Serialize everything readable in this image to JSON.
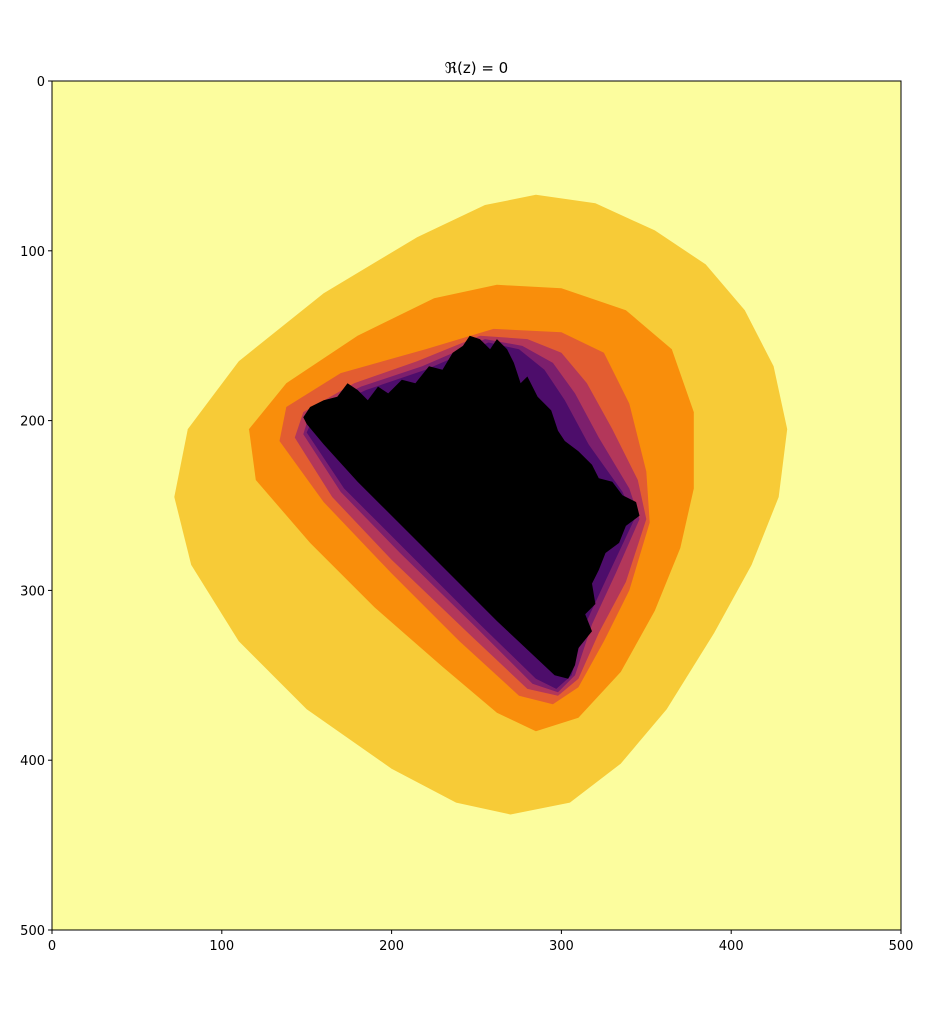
{
  "chart_data": {
    "type": "heatmap",
    "title": "ℜ(z) = 0",
    "xlabel": "",
    "ylabel": "",
    "xlim": [
      0,
      500
    ],
    "ylim": [
      500,
      0
    ],
    "xticks": [
      0,
      100,
      200,
      300,
      400,
      500
    ],
    "yticks": [
      0,
      100,
      200,
      300,
      400,
      500
    ],
    "grid": false,
    "legend": "none",
    "colormap": "inferno",
    "colors": {
      "background": "#fcfd9e",
      "level_1": "#f7cb37",
      "level_2": "#f98e0b",
      "level_3": "#e35d31",
      "level_4": "#b3375a",
      "level_5": "#7c1f6d",
      "level_6": "#4d0d6b",
      "interior": "#000000"
    },
    "contours": [
      {
        "level": "level_1",
        "points": [
          [
            285,
            67
          ],
          [
            320,
            72
          ],
          [
            355,
            88
          ],
          [
            385,
            108
          ],
          [
            408,
            135
          ],
          [
            425,
            168
          ],
          [
            433,
            205
          ],
          [
            428,
            245
          ],
          [
            412,
            285
          ],
          [
            390,
            325
          ],
          [
            362,
            370
          ],
          [
            335,
            402
          ],
          [
            305,
            425
          ],
          [
            270,
            432
          ],
          [
            238,
            425
          ],
          [
            200,
            405
          ],
          [
            150,
            370
          ],
          [
            110,
            330
          ],
          [
            82,
            285
          ],
          [
            72,
            245
          ],
          [
            80,
            205
          ],
          [
            110,
            165
          ],
          [
            160,
            125
          ],
          [
            215,
            92
          ],
          [
            255,
            73
          ]
        ]
      },
      {
        "level": "level_2",
        "points": [
          [
            262,
            120
          ],
          [
            300,
            122
          ],
          [
            338,
            135
          ],
          [
            365,
            158
          ],
          [
            378,
            195
          ],
          [
            378,
            240
          ],
          [
            370,
            275
          ],
          [
            355,
            312
          ],
          [
            335,
            348
          ],
          [
            310,
            375
          ],
          [
            285,
            383
          ],
          [
            262,
            372
          ],
          [
            230,
            345
          ],
          [
            190,
            310
          ],
          [
            152,
            272
          ],
          [
            120,
            235
          ],
          [
            116,
            205
          ],
          [
            138,
            178
          ],
          [
            180,
            150
          ],
          [
            225,
            128
          ]
        ]
      },
      {
        "level": "level_3",
        "points": [
          [
            260,
            146
          ],
          [
            300,
            148
          ],
          [
            325,
            160
          ],
          [
            340,
            190
          ],
          [
            350,
            230
          ],
          [
            352,
            260
          ],
          [
            340,
            300
          ],
          [
            325,
            330
          ],
          [
            310,
            357
          ],
          [
            295,
            367
          ],
          [
            275,
            362
          ],
          [
            240,
            330
          ],
          [
            200,
            290
          ],
          [
            160,
            248
          ],
          [
            134,
            212
          ],
          [
            138,
            192
          ],
          [
            170,
            172
          ],
          [
            220,
            158
          ]
        ]
      },
      {
        "level": "level_4",
        "points": [
          [
            252,
            150
          ],
          [
            280,
            152
          ],
          [
            300,
            160
          ],
          [
            315,
            178
          ],
          [
            330,
            205
          ],
          [
            345,
            235
          ],
          [
            350,
            258
          ],
          [
            338,
            295
          ],
          [
            322,
            325
          ],
          [
            310,
            352
          ],
          [
            298,
            362
          ],
          [
            280,
            358
          ],
          [
            245,
            325
          ],
          [
            200,
            282
          ],
          [
            165,
            245
          ],
          [
            143,
            210
          ],
          [
            148,
            195
          ],
          [
            178,
            178
          ],
          [
            215,
            165
          ]
        ]
      },
      {
        "level": "level_5",
        "points": [
          [
            255,
            152
          ],
          [
            277,
            156
          ],
          [
            295,
            166
          ],
          [
            308,
            184
          ],
          [
            322,
            210
          ],
          [
            340,
            240
          ],
          [
            346,
            258
          ],
          [
            332,
            290
          ],
          [
            318,
            320
          ],
          [
            308,
            350
          ],
          [
            298,
            360
          ],
          [
            283,
            355
          ],
          [
            250,
            322
          ],
          [
            205,
            278
          ],
          [
            170,
            242
          ],
          [
            148,
            208
          ],
          [
            152,
            195
          ],
          [
            182,
            180
          ],
          [
            218,
            168
          ]
        ]
      },
      {
        "level": "level_6",
        "points": [
          [
            257,
            154
          ],
          [
            275,
            158
          ],
          [
            290,
            170
          ],
          [
            302,
            188
          ],
          [
            316,
            214
          ],
          [
            336,
            242
          ],
          [
            343,
            258
          ],
          [
            328,
            290
          ],
          [
            314,
            320
          ],
          [
            306,
            350
          ],
          [
            297,
            358
          ],
          [
            285,
            352
          ],
          [
            252,
            320
          ],
          [
            208,
            276
          ],
          [
            172,
            240
          ],
          [
            150,
            207
          ],
          [
            155,
            196
          ],
          [
            185,
            182
          ],
          [
            220,
            170
          ]
        ]
      },
      {
        "level": "interior",
        "points": [
          [
            252,
            152
          ],
          [
            258,
            158
          ],
          [
            262,
            152
          ],
          [
            268,
            158
          ],
          [
            272,
            166
          ],
          [
            276,
            178
          ],
          [
            280,
            174
          ],
          [
            286,
            186
          ],
          [
            294,
            194
          ],
          [
            298,
            206
          ],
          [
            302,
            212
          ],
          [
            310,
            218
          ],
          [
            318,
            226
          ],
          [
            322,
            234
          ],
          [
            330,
            236
          ],
          [
            336,
            244
          ],
          [
            344,
            248
          ],
          [
            346,
            256
          ],
          [
            338,
            262
          ],
          [
            334,
            272
          ],
          [
            326,
            278
          ],
          [
            322,
            288
          ],
          [
            318,
            296
          ],
          [
            320,
            308
          ],
          [
            314,
            314
          ],
          [
            318,
            324
          ],
          [
            310,
            334
          ],
          [
            308,
            344
          ],
          [
            304,
            352
          ],
          [
            296,
            350
          ],
          [
            262,
            318
          ],
          [
            222,
            278
          ],
          [
            180,
            236
          ],
          [
            160,
            214
          ],
          [
            150,
            202
          ],
          [
            148,
            198
          ],
          [
            152,
            192
          ],
          [
            160,
            188
          ],
          [
            168,
            186
          ],
          [
            174,
            178
          ],
          [
            180,
            182
          ],
          [
            186,
            188
          ],
          [
            192,
            180
          ],
          [
            198,
            184
          ],
          [
            206,
            176
          ],
          [
            214,
            178
          ],
          [
            222,
            168
          ],
          [
            230,
            170
          ],
          [
            236,
            160
          ],
          [
            242,
            156
          ],
          [
            246,
            150
          ]
        ]
      }
    ]
  }
}
